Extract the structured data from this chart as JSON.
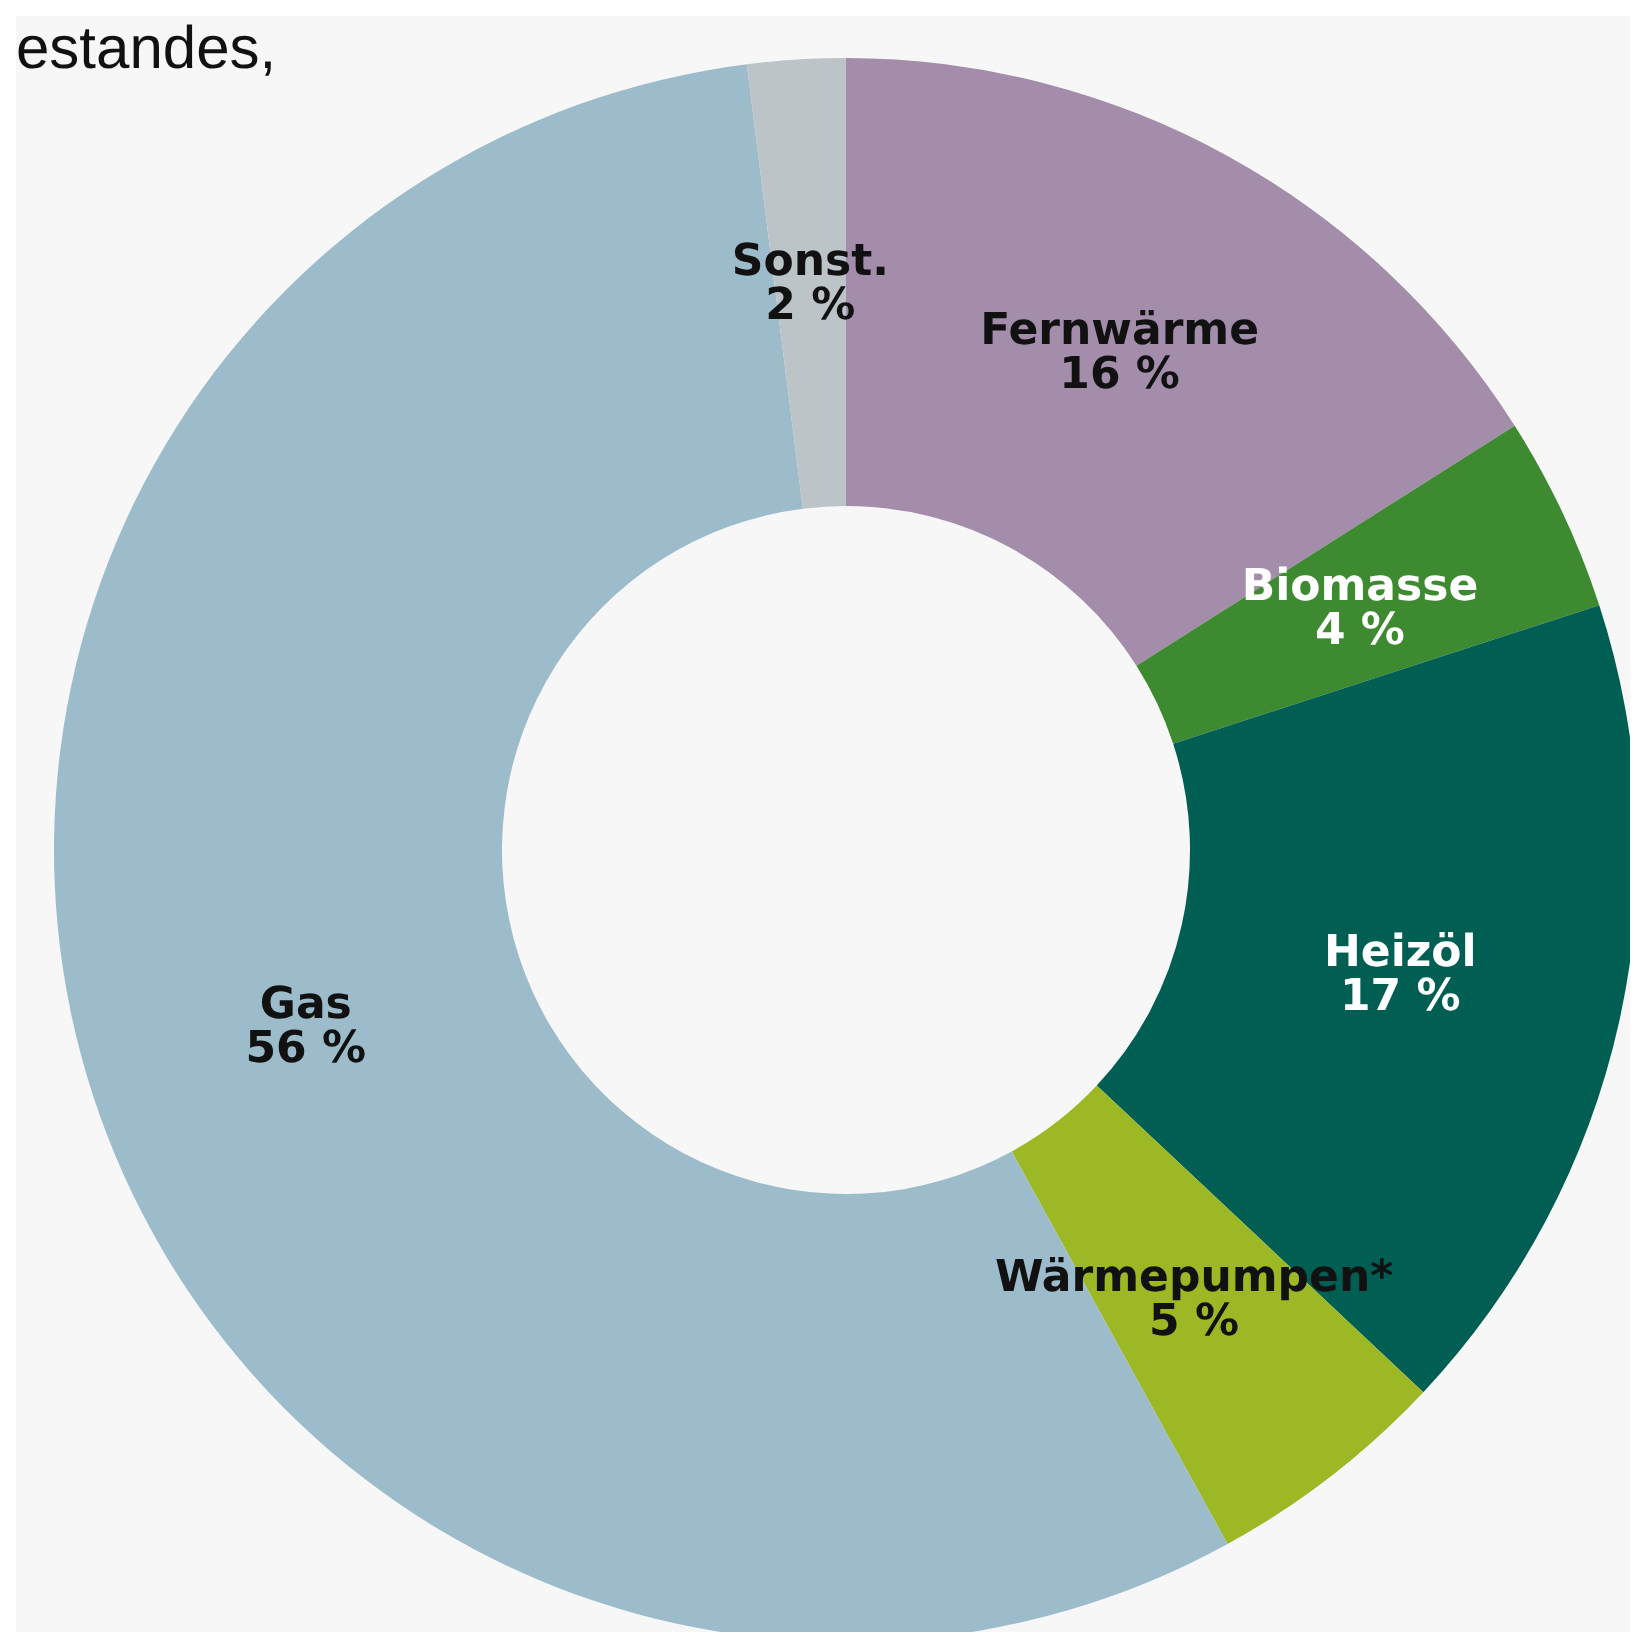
{
  "chart_data": {
    "type": "donut",
    "title": "estandes,",
    "categories": [
      "Fernwärme",
      "Biomasse",
      "Heizöl",
      "Wärmepumpen*",
      "Gas",
      "Sonst."
    ],
    "values": [
      16,
      4,
      17,
      5,
      56,
      2
    ],
    "value_labels": [
      "16 %",
      "4 %",
      "17 %",
      "5 %",
      "56 %",
      "2 %"
    ],
    "colors": [
      "#a38daa",
      "#3e8a30",
      "#005f52",
      "#9cb824",
      "#9dbccb",
      "#bcc4c8"
    ],
    "legend": false
  }
}
